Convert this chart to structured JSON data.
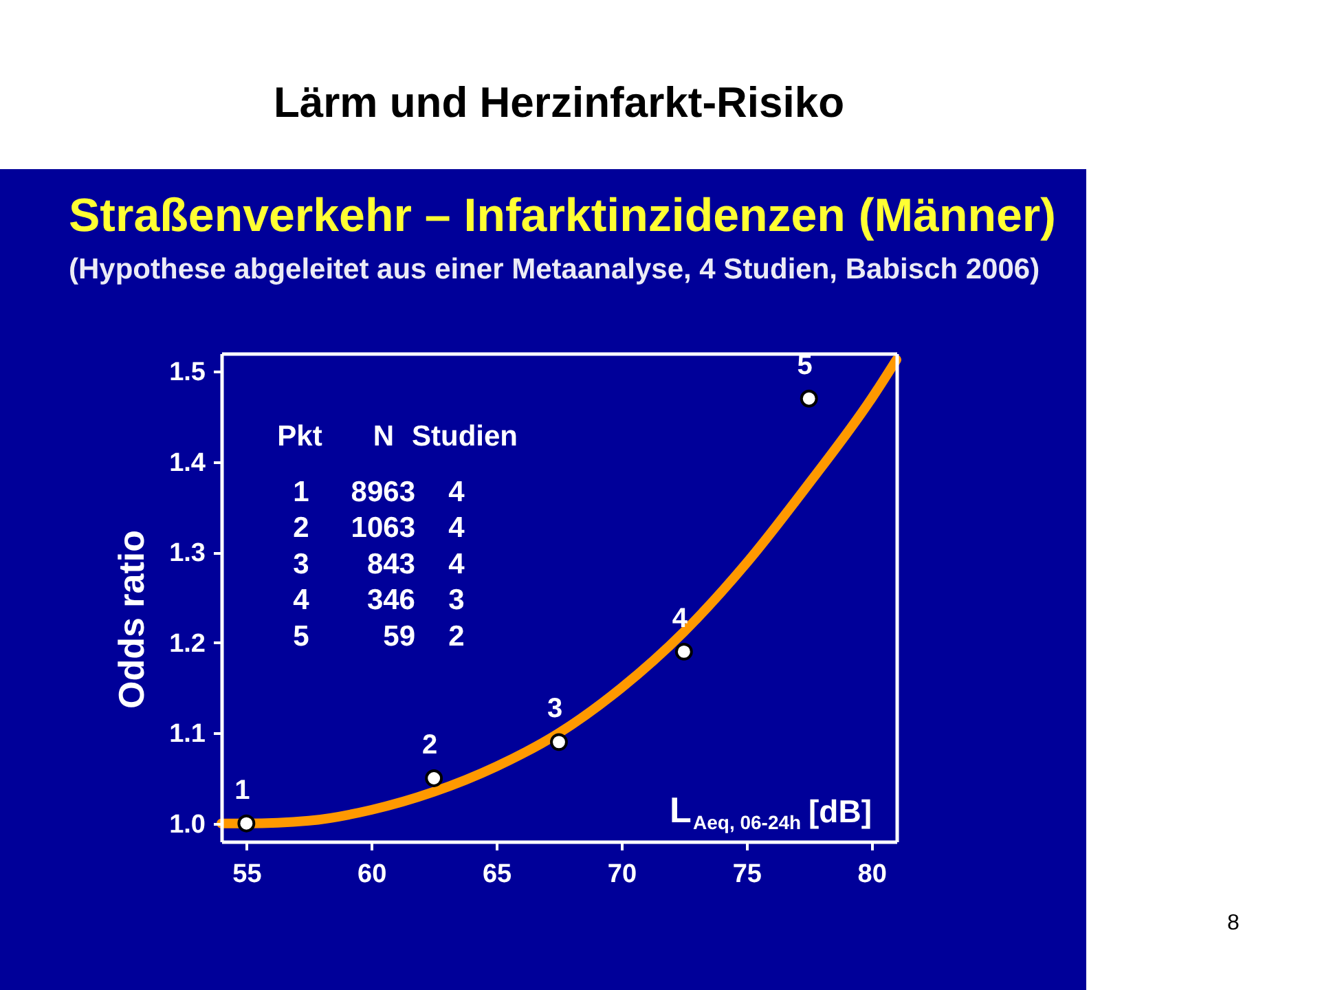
{
  "chart_data": {
    "type": "scatter",
    "title": "Lärm und Herzinfarkt-Risiko",
    "subtitle": "Straßenverkehr – Infarktinzidenzen (Männer)",
    "xlabel": "L$_{Aeq, 06-24h}$ [dB]",
    "ylabel": "Odds ratio",
    "xlim": [
      54,
      81
    ],
    "ylim": [
      0.98,
      1.52
    ],
    "xticks": [
      55,
      60,
      65,
      70,
      75,
      80
    ],
    "yticks": [
      {
        "value": 1,
        "label": "1.0"
      },
      1.1,
      1.2,
      1.3,
      1.4,
      1.5
    ],
    "series": [
      {
        "type": "line",
        "color": "#ff9900",
        "x": [
          54,
          55,
          57.5,
          60,
          62.5,
          65,
          67.5,
          70,
          72.5,
          75,
          77.5,
          80,
          81
        ],
        "values": [
          1.0,
          1.0,
          1.003,
          1.015,
          1.035,
          1.063,
          1.1,
          1.15,
          1.212,
          1.288,
          1.376,
          1.47,
          1.513
        ]
      },
      {
        "marker": "circle",
        "color": "#ffffff",
        "x": [
          55,
          62.5,
          67.5,
          72.5,
          77.5
        ],
        "values": [
          1.0,
          1.05,
          1.09,
          1.19,
          1.47
        ]
      }
    ],
    "annotations": [
      "(Hypothese abgeleitet aus einer Metaanalyse, 4 Studien, Babisch 2006)",
      "Pkt",
      "N",
      "Studien",
      "1",
      "8963",
      "4",
      "2",
      "1063",
      "4",
      "3",
      "843",
      "4",
      "4",
      "346",
      "3",
      "5",
      "59",
      "2",
      {
        "text": "1",
        "x": 55,
        "y": 1.0
      },
      {
        "text": "2",
        "x": 62.5,
        "y": 1.05
      },
      {
        "text": "3",
        "x": 67.5,
        "y": 1.09
      },
      {
        "text": "4",
        "x": 72.5,
        "y": 1.19
      },
      {
        "text": "5",
        "x": 77.5,
        "y": 1.47
      },
      "8"
    ]
  }
}
